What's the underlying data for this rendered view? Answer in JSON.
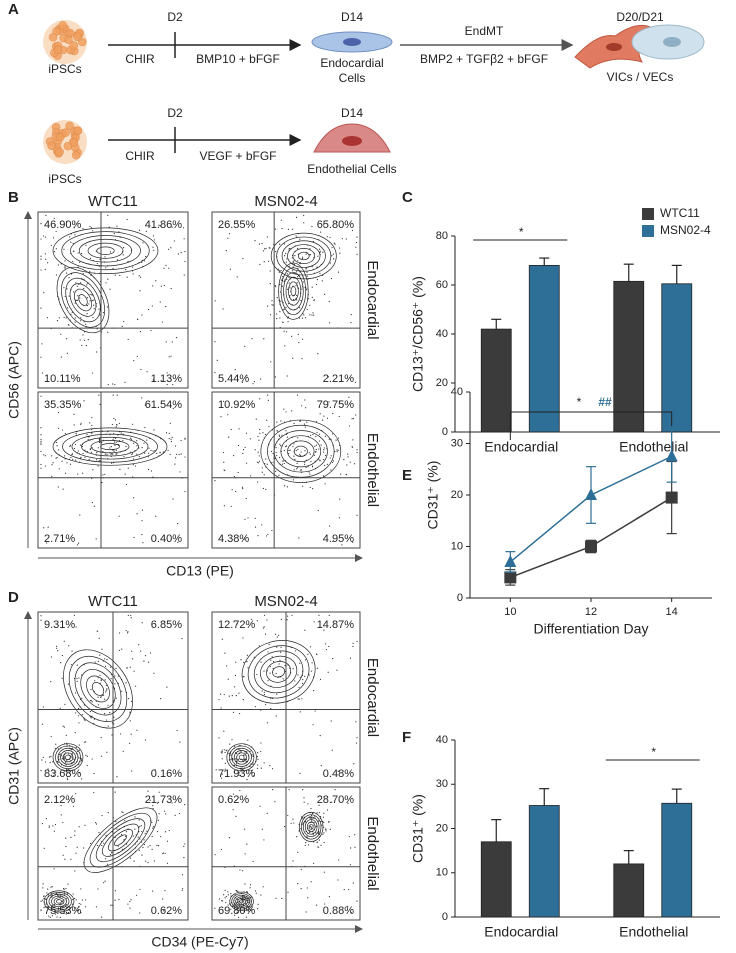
{
  "panel_labels": [
    "A",
    "B",
    "C",
    "D",
    "E",
    "F"
  ],
  "schematic": {
    "row1": {
      "start": "iPSCs",
      "d2": "D2",
      "step1": "CHIR",
      "step2": "BMP10 + bFGF",
      "d14": "D14",
      "cell": [
        "Endocardial",
        "Cells"
      ],
      "transition": "EndMT",
      "step3": "BMP2 + TGFβ2 + bFGF",
      "end_day": "D20/D21",
      "end_cells": "VICs / VECs"
    },
    "row2": {
      "start": "iPSCs",
      "d2": "D2",
      "step1": "CHIR",
      "step2": "VEGF + bFGF",
      "d14": "D14",
      "cell": "Endothelial Cells"
    }
  },
  "flow_cd13_cd56": {
    "columns": [
      "WTC11",
      "MSN02-4"
    ],
    "rows": [
      "Endocardial",
      "Endothelial"
    ],
    "x_label": "CD13 (PE)",
    "y_label": "CD56 (APC)",
    "plots": [
      [
        "46.90%",
        "41.86%",
        "10.11%",
        "1.13%"
      ],
      [
        "26.55%",
        "65.80%",
        "5.44%",
        "2.21%"
      ],
      [
        "35.35%",
        "61.54%",
        "2.71%",
        "0.40%"
      ],
      [
        "10.92%",
        "79.75%",
        "4.38%",
        "4.95%"
      ]
    ]
  },
  "flow_cd34_cd31": {
    "columns": [
      "WTC11",
      "MSN02-4"
    ],
    "rows": [
      "Endocardial",
      "Endothelial"
    ],
    "x_label": "CD34 (PE-Cy7)",
    "y_label": "CD31 (APC)",
    "plots": [
      [
        "9.31%",
        "6.85%",
        "83.68%",
        "0.16%"
      ],
      [
        "12.72%",
        "14.87%",
        "71.93%",
        "0.48%"
      ],
      [
        "2.12%",
        "21.73%",
        "75.53%",
        "0.62%"
      ],
      [
        "0.62%",
        "28.70%",
        "69.80%",
        "0.88%"
      ]
    ]
  },
  "chart_data": [
    {
      "type": "bar",
      "ylabel": "CD13⁺/CD56⁺ (%)",
      "categories": [
        "Endocardial",
        "Endothelial"
      ],
      "series": [
        {
          "name": "WTC11",
          "color": "#3b3b3b",
          "values": [
            42,
            61.5
          ],
          "errors": [
            4,
            7
          ]
        },
        {
          "name": "MSN02-4",
          "color": "#2e6f97",
          "values": [
            68,
            60.5
          ],
          "errors": [
            3,
            7.5
          ]
        }
      ],
      "ylim": [
        0,
        80
      ],
      "yticks": [
        0,
        20,
        40,
        60,
        80
      ],
      "legend": "top-right",
      "annotations": [
        "*"
      ]
    },
    {
      "type": "line",
      "xlabel": "Differentiation Day",
      "ylabel": "CD31⁺ (%)",
      "x": [
        10,
        12,
        14
      ],
      "series": [
        {
          "color": "#3b3b3b",
          "marker": "square",
          "values": [
            4,
            10,
            19.5
          ],
          "errors": [
            1.5,
            1.2,
            7
          ]
        },
        {
          "color": "#2e6f97",
          "marker": "triangle",
          "values": [
            7,
            20,
            27.5
          ],
          "errors": [
            2,
            5.5,
            5
          ]
        }
      ],
      "xlim": [
        9,
        15
      ],
      "xticks": [
        10,
        12,
        14
      ],
      "ylim": [
        0,
        40
      ],
      "yticks": [
        0,
        10,
        20,
        30,
        40
      ],
      "annotations": [
        "*",
        "##"
      ]
    },
    {
      "type": "bar",
      "ylabel": "CD31⁺ (%)",
      "categories": [
        "Endocardial",
        "Endothelial"
      ],
      "series": [
        {
          "color": "#3b3b3b",
          "values": [
            17,
            12
          ],
          "errors": [
            5,
            3
          ]
        },
        {
          "color": "#2e6f97",
          "values": [
            25.2,
            25.7
          ],
          "errors": [
            3.8,
            3.2
          ]
        }
      ],
      "ylim": [
        0,
        40
      ],
      "yticks": [
        0,
        10,
        20,
        30,
        40
      ],
      "annotations": [
        "*"
      ]
    }
  ]
}
